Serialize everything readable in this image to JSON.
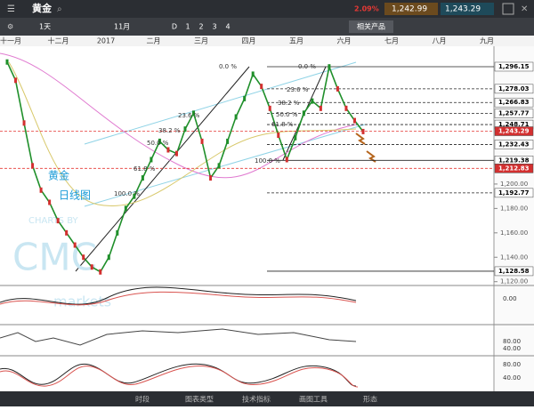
{
  "header": {
    "title": "黄金",
    "change": "2.09%",
    "sell": "1,242.99",
    "buy": "1,243.29"
  },
  "toolbar": {
    "period": "1天",
    "month": "11月",
    "frames": [
      "D",
      "1",
      "2",
      "3",
      "4"
    ],
    "related": "相关产品"
  },
  "time_axis": [
    "十一月",
    "十二月",
    "2017",
    "二月",
    "三月",
    "四月",
    "五月",
    "六月",
    "七月",
    "八月",
    "九月"
  ],
  "price_axis": {
    "range": [
      1117.6,
      1312.9
    ],
    "ticks": [
      {
        "value": 1200,
        "label": "1,200.00"
      },
      {
        "value": 1180,
        "label": "1,180.00"
      },
      {
        "value": 1160,
        "label": "1,160.00"
      },
      {
        "value": 1140,
        "label": "1,140.00"
      },
      {
        "value": 1120,
        "label": "1,120.00"
      }
    ],
    "levels": [
      {
        "value": 1296.15,
        "label": "1,296.15"
      },
      {
        "value": 1278.03,
        "label": "1,278.03"
      },
      {
        "value": 1266.83,
        "label": "1,266.83"
      },
      {
        "value": 1257.77,
        "label": "1,257.77"
      },
      {
        "value": 1248.71,
        "label": "1,248.71"
      },
      {
        "value": 1243.29,
        "label": "1,243.29"
      },
      {
        "value": 1232.43,
        "label": "1,232.43"
      },
      {
        "value": 1219.38,
        "label": "1,219.38"
      },
      {
        "value": 1212.83,
        "label": "1,212.83"
      },
      {
        "value": 1192.77,
        "label": "1,192.77"
      },
      {
        "value": 1128.58,
        "label": "1,128.58"
      }
    ]
  },
  "price": [
    1300,
    1285,
    1250,
    1215,
    1195,
    1185,
    1170,
    1160,
    1150,
    1140,
    1132,
    1128,
    1140,
    1160,
    1180,
    1190,
    1205,
    1220,
    1235,
    1228,
    1225,
    1245,
    1258,
    1235,
    1205,
    1215,
    1235,
    1255,
    1270,
    1290,
    1280,
    1262,
    1240,
    1220,
    1238,
    1258,
    1268,
    1262,
    1296,
    1278,
    1262,
    1252,
    1243
  ],
  "fib_labels": [
    "0.0 %",
    "0.0 %",
    "23.6 %",
    "38.2 %",
    "50.0 %",
    "61.8 %",
    "100.0 %",
    "23.6 %",
    "38.2 %",
    "50.0 %",
    "61.8 %",
    "100.0 %"
  ],
  "overlay_text": [
    "黄金",
    "日线图"
  ],
  "watermark": [
    "CHARTS BY",
    "CMC",
    "markets"
  ],
  "indicators": [
    [
      "0.00"
    ],
    [
      "80.00",
      "40.00"
    ],
    [
      "80.00",
      "40.00"
    ]
  ],
  "bottom_bar": [
    "时段",
    "图表类型",
    "技术指标",
    "画图工具",
    "形态"
  ]
}
